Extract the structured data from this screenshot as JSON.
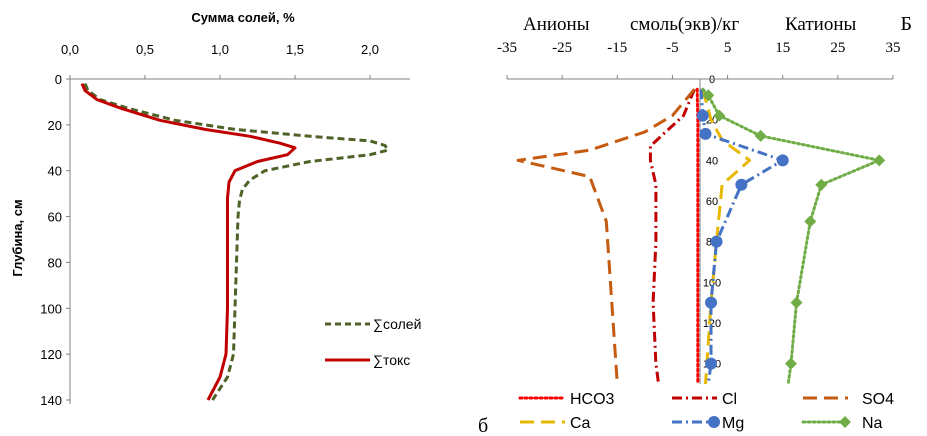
{
  "chart_data": [
    {
      "type": "line",
      "xlabel": "Сумма солей, %",
      "ylabel": "Глубина, см",
      "xlim": [
        0,
        2.2
      ],
      "ylim": [
        0,
        140
      ],
      "x_ticks": [
        "0,0",
        "0,5",
        "1,0",
        "1,5",
        "2,0"
      ],
      "y_ticks": [
        "0",
        "20",
        "40",
        "60",
        "80",
        "100",
        "120",
        "140"
      ],
      "series": [
        {
          "name": "∑солей",
          "color": "#4f6228",
          "style": "dashed",
          "points": [
            [
              0.1,
              2
            ],
            [
              0.12,
              5
            ],
            [
              0.2,
              9
            ],
            [
              0.4,
              13
            ],
            [
              0.7,
              18
            ],
            [
              1.1,
              22
            ],
            [
              1.6,
              25
            ],
            [
              2.0,
              27
            ],
            [
              2.1,
              29
            ],
            [
              2.12,
              31
            ],
            [
              2.0,
              33
            ],
            [
              1.6,
              36
            ],
            [
              1.3,
              40
            ],
            [
              1.2,
              44
            ],
            [
              1.15,
              48
            ],
            [
              1.13,
              53
            ],
            [
              1.12,
              60
            ],
            [
              1.11,
              80
            ],
            [
              1.1,
              100
            ],
            [
              1.09,
              120
            ],
            [
              1.05,
              130
            ],
            [
              0.95,
              140
            ]
          ]
        },
        {
          "name": "∑токс",
          "color": "#c00000",
          "style": "solid",
          "points": [
            [
              0.08,
              2
            ],
            [
              0.1,
              5
            ],
            [
              0.18,
              9
            ],
            [
              0.35,
              13
            ],
            [
              0.6,
              18
            ],
            [
              0.9,
              22
            ],
            [
              1.2,
              25
            ],
            [
              1.4,
              28
            ],
            [
              1.5,
              30
            ],
            [
              1.45,
              33
            ],
            [
              1.25,
              36
            ],
            [
              1.1,
              40
            ],
            [
              1.06,
              45
            ],
            [
              1.05,
              52
            ],
            [
              1.05,
              60
            ],
            [
              1.05,
              80
            ],
            [
              1.05,
              100
            ],
            [
              1.04,
              120
            ],
            [
              1.0,
              130
            ],
            [
              0.92,
              140
            ]
          ]
        }
      ]
    },
    {
      "type": "line",
      "title_left": "Анионы",
      "title_mid": "смоль(экв)/кг",
      "title_right": "Катионы",
      "xlim": [
        -35,
        35
      ],
      "ylim": [
        0,
        150
      ],
      "x_ticks": [
        "-35",
        "-25",
        "-15",
        "-5",
        "5",
        "15",
        "25",
        "35"
      ],
      "y_ticks": [
        "0",
        "20",
        "40",
        "60",
        "80",
        "100",
        "120",
        "140"
      ],
      "series": [
        {
          "name": "HCO3",
          "color": "#ff0000",
          "style": "dotted",
          "marker": "none",
          "points": [
            [
              -0.5,
              5
            ],
            [
              -0.4,
              20
            ],
            [
              -0.4,
              40
            ],
            [
              -0.4,
              60
            ],
            [
              -0.4,
              100
            ],
            [
              -0.4,
              140
            ],
            [
              -0.4,
              150
            ]
          ]
        },
        {
          "name": "Cl",
          "color": "#c00000",
          "style": "dashdot",
          "marker": "none",
          "points": [
            [
              -1,
              5
            ],
            [
              -3,
              18
            ],
            [
              -7,
              28
            ],
            [
              -9,
              33
            ],
            [
              -9,
              40
            ],
            [
              -8,
              52
            ],
            [
              -8,
              80
            ],
            [
              -8.5,
              110
            ],
            [
              -8,
              140
            ],
            [
              -7.5,
              150
            ]
          ]
        },
        {
          "name": "SO4",
          "color": "#c55a11",
          "style": "longdash",
          "marker": "none",
          "points": [
            [
              -1,
              5
            ],
            [
              -5,
              18
            ],
            [
              -10,
              26
            ],
            [
              -20,
              35
            ],
            [
              -33,
              40
            ],
            [
              -20,
              48
            ],
            [
              -17,
              70
            ],
            [
              -16,
              110
            ],
            [
              -15,
              150
            ]
          ]
        },
        {
          "name": "Ca",
          "color": "#e8b800",
          "style": "longdash",
          "marker": "none",
          "points": [
            [
              0.5,
              5
            ],
            [
              2,
              20
            ],
            [
              4,
              30
            ],
            [
              9,
              40
            ],
            [
              4,
              52
            ],
            [
              3,
              80
            ],
            [
              2,
              110
            ],
            [
              1,
              150
            ]
          ]
        },
        {
          "name": "Mg",
          "color": "#4472c4",
          "style": "dashdot",
          "marker": "circle",
          "points": [
            [
              0.2,
              5
            ],
            [
              0.5,
              18
            ],
            [
              1,
              27
            ],
            [
              15,
              40
            ],
            [
              7.5,
              52
            ],
            [
              3,
              80
            ],
            [
              2,
              110
            ],
            [
              2,
              140
            ],
            [
              1.5,
              150
            ]
          ]
        },
        {
          "name": "Na",
          "color": "#70ad47",
          "style": "dotted",
          "marker": "diamond",
          "points": [
            [
              0.5,
              5
            ],
            [
              1.5,
              8
            ],
            [
              3.5,
              18
            ],
            [
              11,
              28
            ],
            [
              32.5,
              40
            ],
            [
              22,
              52
            ],
            [
              20,
              70
            ],
            [
              17.5,
              110
            ],
            [
              16.5,
              140
            ],
            [
              16,
              150
            ]
          ]
        }
      ]
    }
  ],
  "labels": {
    "panel_left_letter": "б",
    "panel_right_letter": "Б"
  }
}
